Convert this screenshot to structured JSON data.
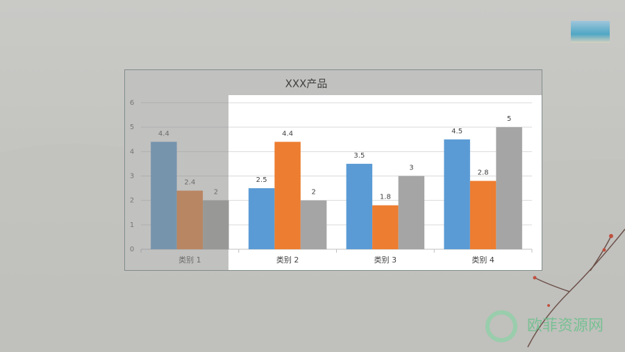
{
  "chart_data": {
    "type": "bar",
    "title": "XXX产品",
    "categories": [
      "类别 1",
      "类别 2",
      "类别 3",
      "类别 4"
    ],
    "series": [
      {
        "color": "#5b9bd5",
        "values": [
          4.4,
          2.5,
          3.5,
          4.5
        ]
      },
      {
        "color": "#ed7d31",
        "values": [
          2.4,
          4.4,
          1.8,
          2.8
        ]
      },
      {
        "color": "#a5a5a5",
        "values": [
          2,
          2,
          3,
          5
        ]
      }
    ],
    "ylim": [
      0,
      6
    ],
    "yticks": [
      0,
      1,
      2,
      3,
      4,
      5,
      6
    ],
    "grid": true
  },
  "watermark": "欧菲资源网"
}
